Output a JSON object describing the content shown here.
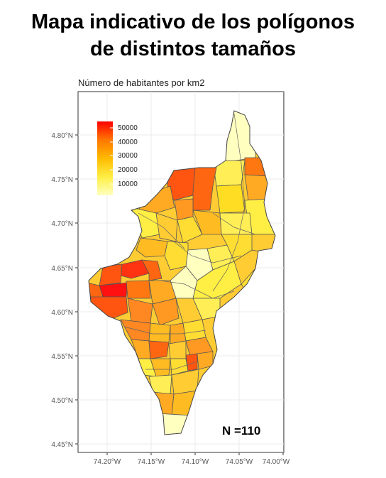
{
  "title": {
    "line1": "Mapa indicativo de los polígonos",
    "line2": "de distintos tamaños"
  },
  "map": {
    "subtitle": "Número de habitantes por km2",
    "n_label": "N =110",
    "grid": true,
    "lat_ticks": [
      "4.80°N",
      "4.75°N",
      "4.70°N",
      "4.65°N",
      "4.60°N",
      "4.55°N",
      "4.50°N",
      "4.45°N"
    ],
    "lon_ticks": [
      "74.20°W",
      "74.15°W",
      "74.10°W",
      "74.05°W",
      "74.00°W"
    ],
    "legend": {
      "placement": "top-left",
      "labels": [
        "50000",
        "40000",
        "30000",
        "20000",
        "10000"
      ],
      "scale_colors": [
        "#ff0000",
        "#ff6600",
        "#ffaa00",
        "#ffe000",
        "#ffffc0"
      ]
    }
  }
}
